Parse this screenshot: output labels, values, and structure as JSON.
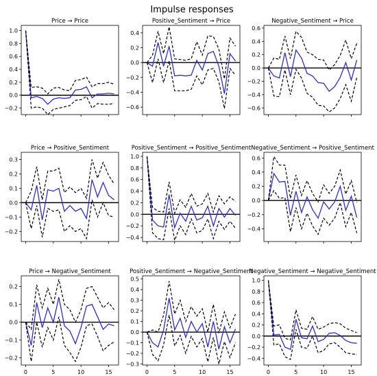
{
  "figure": {
    "title": "Impulse responses"
  },
  "chart_data": [
    {
      "type": "line",
      "title": "Price → Price",
      "xlim": [
        -0.8,
        16.8
      ],
      "ylim": [
        -0.3,
        1.08
      ],
      "yticks": [
        -0.2,
        0.0,
        0.2,
        0.4,
        0.6,
        0.8,
        1.0
      ],
      "ytick_labels": [
        "−0.2",
        "0.0",
        "0.2",
        "0.4",
        "0.6",
        "0.8",
        "1.0"
      ],
      "xticks": [],
      "xtick_labels": [],
      "x": [
        0,
        1,
        2,
        3,
        4,
        5,
        6,
        7,
        8,
        9,
        10,
        11,
        12,
        13,
        14,
        15,
        16
      ],
      "series": [
        {
          "role": "response",
          "values": [
            1.0,
            -0.04,
            -0.02,
            -0.05,
            -0.14,
            -0.06,
            -0.04,
            -0.05,
            -0.04,
            0.08,
            0.09,
            0.13,
            -0.04,
            0.02,
            0.02,
            0.03,
            0.02
          ]
        },
        {
          "role": "upper",
          "values": [
            1.0,
            0.12,
            0.13,
            0.11,
            0.02,
            0.11,
            0.12,
            0.08,
            0.07,
            0.23,
            0.24,
            0.28,
            0.13,
            0.18,
            0.18,
            0.2,
            0.17
          ]
        },
        {
          "role": "lower",
          "values": [
            1.0,
            -0.2,
            -0.18,
            -0.2,
            -0.3,
            -0.22,
            -0.2,
            -0.18,
            -0.16,
            -0.08,
            -0.07,
            -0.02,
            -0.2,
            -0.13,
            -0.14,
            -0.14,
            -0.13
          ]
        }
      ]
    },
    {
      "type": "line",
      "title": "Positive_Sentiment → Price",
      "xlim": [
        -0.8,
        16.8
      ],
      "ylim": [
        -0.7,
        0.5
      ],
      "yticks": [
        -0.6,
        -0.4,
        -0.2,
        0.0,
        0.2,
        0.4
      ],
      "ytick_labels": [
        "−0.6",
        "−0.4",
        "−0.2",
        "0.0",
        "0.2",
        "0.4"
      ],
      "xticks": [],
      "xtick_labels": [],
      "x": [
        0,
        1,
        2,
        3,
        4,
        5,
        6,
        7,
        8,
        9,
        10,
        11,
        12,
        13,
        14,
        15,
        16
      ],
      "series": [
        {
          "role": "response",
          "values": [
            0.0,
            -0.05,
            0.27,
            -0.05,
            0.22,
            -0.18,
            -0.17,
            -0.18,
            -0.17,
            0.03,
            -0.1,
            0.12,
            0.15,
            -0.05,
            -0.42,
            0.12,
            0.02
          ]
        },
        {
          "role": "upper",
          "values": [
            0.0,
            0.1,
            0.42,
            0.12,
            0.48,
            0.05,
            0.04,
            0.03,
            0.05,
            0.28,
            0.1,
            0.36,
            0.35,
            0.18,
            -0.22,
            0.33,
            0.22
          ]
        },
        {
          "role": "lower",
          "values": [
            0.0,
            -0.27,
            0.05,
            -0.27,
            0.02,
            -0.38,
            -0.38,
            -0.38,
            -0.36,
            -0.18,
            -0.3,
            -0.1,
            -0.08,
            -0.26,
            -0.62,
            -0.08,
            -0.17
          ]
        }
      ]
    },
    {
      "type": "line",
      "title": "Negative_Sentiment → Price",
      "xlim": [
        -0.8,
        16.8
      ],
      "ylim": [
        -0.7,
        0.64
      ],
      "yticks": [
        -0.6,
        -0.4,
        -0.2,
        0.0,
        0.2,
        0.4,
        0.6
      ],
      "ytick_labels": [
        "−0.6",
        "−0.4",
        "−0.2",
        "0.0",
        "0.2",
        "0.4",
        "0.6"
      ],
      "xticks": [],
      "xtick_labels": [],
      "x": [
        0,
        1,
        2,
        3,
        4,
        5,
        6,
        7,
        8,
        9,
        10,
        11,
        12,
        13,
        14,
        15,
        16
      ],
      "series": [
        {
          "role": "response",
          "values": [
            0.0,
            -0.12,
            -0.15,
            0.23,
            -0.13,
            0.27,
            0.15,
            -0.08,
            -0.12,
            -0.22,
            -0.23,
            -0.35,
            -0.28,
            -0.14,
            0.08,
            -0.18,
            0.12
          ]
        },
        {
          "role": "upper",
          "values": [
            0.0,
            0.15,
            0.13,
            0.48,
            0.14,
            0.55,
            0.46,
            0.24,
            0.2,
            0.13,
            0.12,
            -0.03,
            0.05,
            0.19,
            0.42,
            0.14,
            0.37
          ]
        },
        {
          "role": "lower",
          "values": [
            0.0,
            -0.42,
            -0.43,
            -0.03,
            -0.4,
            -0.02,
            -0.15,
            -0.38,
            -0.44,
            -0.56,
            -0.57,
            -0.66,
            -0.6,
            -0.46,
            -0.25,
            -0.5,
            -0.14
          ]
        }
      ]
    },
    {
      "type": "line",
      "title": "Price → Positive_Sentiment",
      "xlim": [
        -0.8,
        16.8
      ],
      "ylim": [
        -0.27,
        0.35
      ],
      "yticks": [
        -0.2,
        -0.1,
        0.0,
        0.1,
        0.2,
        0.3
      ],
      "ytick_labels": [
        "−0.2",
        "−0.1",
        "0.0",
        "0.1",
        "0.2",
        "0.3"
      ],
      "xticks": [],
      "xtick_labels": [],
      "x": [
        0,
        1,
        2,
        3,
        4,
        5,
        6,
        7,
        8,
        9,
        10,
        11,
        12,
        13,
        14,
        15,
        16
      ],
      "series": [
        {
          "role": "response",
          "values": [
            0.0,
            -0.05,
            0.12,
            -0.12,
            0.09,
            0.08,
            0.1,
            -0.06,
            -0.02,
            -0.06,
            -0.04,
            -0.11,
            0.16,
            0.04,
            0.14,
            0.05,
            0.02
          ]
        },
        {
          "role": "upper",
          "values": [
            0.0,
            0.08,
            0.25,
            0.02,
            0.22,
            0.22,
            0.24,
            0.07,
            0.11,
            0.07,
            0.1,
            0.03,
            0.3,
            0.17,
            0.28,
            0.19,
            0.13
          ]
        },
        {
          "role": "lower",
          "values": [
            0.0,
            -0.18,
            -0.02,
            -0.24,
            -0.04,
            -0.06,
            -0.05,
            -0.2,
            -0.16,
            -0.2,
            -0.18,
            -0.25,
            0.02,
            -0.1,
            0.0,
            -0.09,
            -0.1
          ]
        }
      ]
    },
    {
      "type": "line",
      "title": "Positive_Sentiment → Positive_Sentiment",
      "xlim": [
        -0.8,
        16.8
      ],
      "ylim": [
        -0.47,
        1.07
      ],
      "yticks": [
        -0.4,
        -0.2,
        0.0,
        0.2,
        0.4,
        0.6,
        0.8,
        1.0
      ],
      "ytick_labels": [
        "−0.4",
        "−0.2",
        "0.0",
        "0.2",
        "0.4",
        "0.6",
        "0.8",
        "1.0"
      ],
      "xticks": [],
      "xtick_labels": [],
      "x": [
        0,
        1,
        2,
        3,
        4,
        5,
        6,
        7,
        8,
        9,
        10,
        11,
        12,
        13,
        14,
        15,
        16
      ],
      "series": [
        {
          "role": "response",
          "values": [
            1.0,
            -0.1,
            -0.2,
            -0.22,
            0.34,
            -0.23,
            0.02,
            -0.12,
            0.14,
            -0.1,
            -0.06,
            0.14,
            -0.2,
            0.1,
            -0.05,
            0.1,
            -0.02
          ]
        },
        {
          "role": "upper",
          "values": [
            1.0,
            0.12,
            0.05,
            0.04,
            0.56,
            0.02,
            0.25,
            0.12,
            0.36,
            0.14,
            0.18,
            0.36,
            0.04,
            0.32,
            0.18,
            0.3,
            0.22
          ]
        },
        {
          "role": "lower",
          "values": [
            1.0,
            -0.32,
            -0.42,
            -0.44,
            0.1,
            -0.45,
            -0.2,
            -0.35,
            -0.08,
            -0.32,
            -0.28,
            -0.08,
            -0.42,
            -0.12,
            -0.26,
            -0.12,
            -0.24
          ]
        }
      ]
    },
    {
      "type": "line",
      "title": "Negative_Sentiment → Positive_Sentiment",
      "xlim": [
        -0.8,
        16.8
      ],
      "ylim": [
        -0.58,
        0.68
      ],
      "yticks": [
        -0.4,
        -0.2,
        0.0,
        0.2,
        0.4,
        0.6
      ],
      "ytick_labels": [
        "−0.4",
        "−0.2",
        "0.0",
        "0.2",
        "0.4",
        "0.6"
      ],
      "xticks": [],
      "xtick_labels": [],
      "x": [
        0,
        1,
        2,
        3,
        4,
        5,
        6,
        7,
        8,
        9,
        10,
        11,
        12,
        13,
        14,
        15,
        16
      ],
      "series": [
        {
          "role": "response",
          "values": [
            0.0,
            0.38,
            0.26,
            0.27,
            -0.21,
            0.13,
            -0.17,
            0.05,
            -0.13,
            -0.25,
            -0.02,
            -0.12,
            -0.02,
            0.2,
            -0.14,
            0.06,
            -0.24
          ]
        },
        {
          "role": "upper",
          "values": [
            0.0,
            0.62,
            0.5,
            0.5,
            0.03,
            0.36,
            0.07,
            0.28,
            0.1,
            -0.02,
            0.22,
            0.1,
            0.2,
            0.43,
            0.09,
            0.28,
            -0.03
          ]
        },
        {
          "role": "lower",
          "values": [
            0.0,
            0.14,
            0.03,
            0.04,
            -0.44,
            -0.1,
            -0.4,
            -0.18,
            -0.36,
            -0.48,
            -0.25,
            -0.35,
            -0.25,
            -0.03,
            -0.37,
            -0.17,
            -0.46
          ]
        }
      ]
    },
    {
      "type": "line",
      "title": "Price → Negative_Sentiment",
      "xlim": [
        -0.8,
        16.8
      ],
      "ylim": [
        -0.24,
        0.26
      ],
      "yticks": [
        -0.2,
        -0.1,
        0.0,
        0.1,
        0.2
      ],
      "ytick_labels": [
        "−0.2",
        "−0.1",
        "0.0",
        "0.1",
        "0.2"
      ],
      "xticks": [
        0,
        5,
        10,
        15
      ],
      "xtick_labels": [
        "0",
        "5",
        "10",
        "15"
      ],
      "x": [
        0,
        1,
        2,
        3,
        4,
        5,
        6,
        7,
        8,
        9,
        10,
        11,
        12,
        13,
        14,
        15,
        16
      ],
      "series": [
        {
          "role": "response",
          "values": [
            0.0,
            -0.13,
            0.11,
            -0.03,
            0.08,
            0.0,
            0.14,
            -0.02,
            -0.05,
            -0.12,
            -0.03,
            0.09,
            0.1,
            0.03,
            -0.04,
            -0.01,
            -0.02
          ]
        },
        {
          "role": "upper",
          "values": [
            0.0,
            -0.04,
            0.21,
            0.08,
            0.19,
            0.1,
            0.24,
            0.1,
            0.07,
            0.0,
            0.07,
            0.19,
            0.2,
            0.14,
            0.08,
            0.11,
            0.07
          ]
        },
        {
          "role": "lower",
          "values": [
            0.0,
            -0.22,
            0.0,
            -0.14,
            -0.03,
            -0.1,
            0.03,
            -0.13,
            -0.17,
            -0.22,
            -0.14,
            -0.02,
            -0.01,
            -0.08,
            -0.16,
            -0.13,
            -0.11
          ]
        }
      ]
    },
    {
      "type": "line",
      "title": "Positive_Sentiment → Negative_Sentiment",
      "xlim": [
        -0.8,
        16.8
      ],
      "ylim": [
        -0.31,
        0.53
      ],
      "yticks": [
        -0.3,
        -0.2,
        -0.1,
        0.0,
        0.1,
        0.2,
        0.3,
        0.4,
        0.5
      ],
      "ytick_labels": [
        "−0.3",
        "−0.2",
        "−0.1",
        "0.0",
        "0.1",
        "0.2",
        "0.3",
        "0.4",
        "0.5"
      ],
      "xticks": [
        0,
        5,
        10,
        15
      ],
      "xtick_labels": [
        "0",
        "5",
        "10",
        "15"
      ],
      "x": [
        0,
        1,
        2,
        3,
        4,
        5,
        6,
        7,
        8,
        9,
        10,
        11,
        12,
        13,
        14,
        15,
        16
      ],
      "series": [
        {
          "role": "response",
          "values": [
            0.0,
            -0.1,
            -0.14,
            0.02,
            0.32,
            0.02,
            0.13,
            -0.05,
            0.1,
            0.0,
            0.08,
            -0.14,
            0.1,
            -0.16,
            0.05,
            -0.1,
            0.03
          ]
        },
        {
          "role": "upper",
          "values": [
            0.0,
            0.02,
            0.0,
            0.16,
            0.48,
            0.17,
            0.3,
            0.1,
            0.24,
            0.15,
            0.22,
            0.0,
            0.26,
            -0.01,
            0.19,
            0.04,
            0.17
          ]
        },
        {
          "role": "lower",
          "values": [
            0.0,
            -0.21,
            -0.27,
            -0.12,
            0.16,
            -0.13,
            -0.03,
            -0.2,
            -0.04,
            -0.14,
            -0.06,
            -0.28,
            -0.05,
            -0.3,
            -0.09,
            -0.24,
            -0.1
          ]
        }
      ]
    },
    {
      "type": "line",
      "title": "Negative_Sentiment → Negative_Sentiment",
      "xlim": [
        -0.8,
        16.8
      ],
      "ylim": [
        -0.52,
        1.08
      ],
      "yticks": [
        -0.4,
        -0.2,
        0.0,
        0.2,
        0.4,
        0.6,
        0.8,
        1.0
      ],
      "ytick_labels": [
        "−0.4",
        "−0.2",
        "0.0",
        "0.2",
        "0.4",
        "0.6",
        "0.8",
        "1.0"
      ],
      "xticks": [
        0,
        5,
        10,
        15
      ],
      "xtick_labels": [
        "0",
        "5",
        "10",
        "15"
      ],
      "x": [
        0,
        1,
        2,
        3,
        4,
        5,
        6,
        7,
        8,
        9,
        10,
        11,
        12,
        13,
        14,
        15,
        16
      ],
      "series": [
        {
          "role": "response",
          "values": [
            1.0,
            0.02,
            0.03,
            -0.2,
            -0.24,
            0.3,
            -0.03,
            -0.05,
            0.18,
            -0.1,
            -0.06,
            0.05,
            0.06,
            0.01,
            -0.08,
            -0.12,
            -0.13
          ]
        },
        {
          "role": "upper",
          "values": [
            1.0,
            0.18,
            0.2,
            -0.04,
            -0.07,
            0.47,
            0.14,
            0.12,
            0.35,
            0.12,
            0.16,
            0.22,
            0.24,
            0.22,
            0.14,
            0.1,
            0.06
          ]
        },
        {
          "role": "lower",
          "values": [
            1.0,
            -0.16,
            -0.14,
            -0.37,
            -0.42,
            0.12,
            -0.2,
            -0.22,
            0.0,
            -0.3,
            -0.26,
            -0.14,
            -0.12,
            -0.2,
            -0.3,
            -0.32,
            -0.33
          ]
        }
      ]
    }
  ]
}
